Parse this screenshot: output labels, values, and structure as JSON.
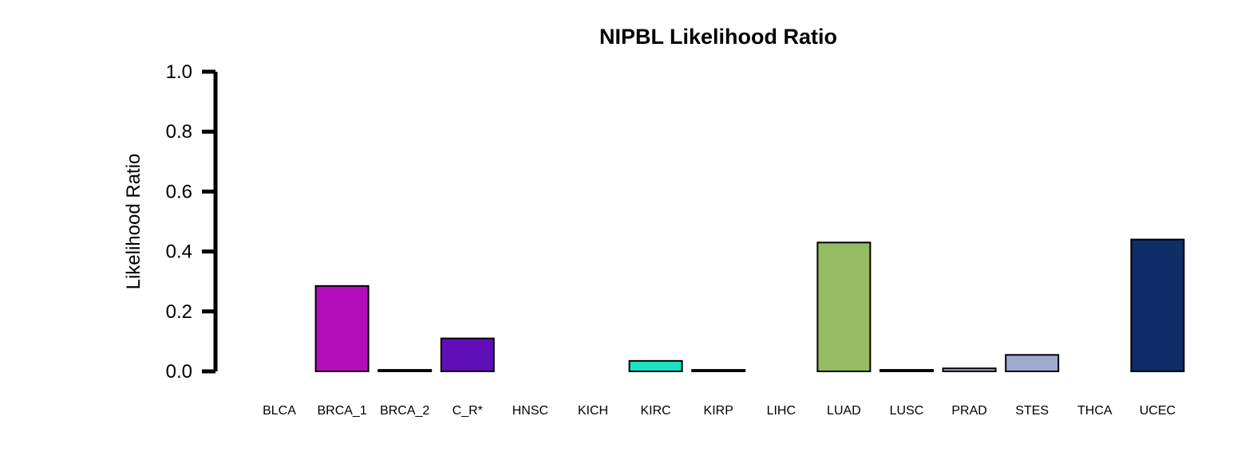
{
  "chart_data": {
    "type": "bar",
    "title": "NIPBL Likelihood Ratio",
    "xlabel": "",
    "ylabel": "Likelihood Ratio",
    "ylim": [
      0,
      1.0
    ],
    "yticks": [
      "0.0",
      "0.2",
      "0.4",
      "0.6",
      "0.8",
      "1.0"
    ],
    "grid": false,
    "legend": "none",
    "categories": [
      "BLCA",
      "BRCA_1",
      "BRCA_2",
      "C_R*",
      "HNSC",
      "KICH",
      "KIRC",
      "KIRP",
      "LIHC",
      "LUAD",
      "LUSC",
      "PRAD",
      "STES",
      "THCA",
      "UCEC"
    ],
    "values": [
      0.0,
      0.285,
      0.005,
      0.11,
      0.0,
      0.0,
      0.035,
      0.005,
      0.0,
      0.43,
      0.005,
      0.01,
      0.055,
      0.0,
      0.44
    ],
    "colors": [
      "#000000",
      "#B30DBB",
      "#000000",
      "#5F0EB8",
      "#000000",
      "#000000",
      "#1DE3C2",
      "#000000",
      "#000000",
      "#96BC63",
      "#000000",
      "#9FA9CD",
      "#9FA9CD",
      "#000000",
      "#0F2D66"
    ]
  }
}
